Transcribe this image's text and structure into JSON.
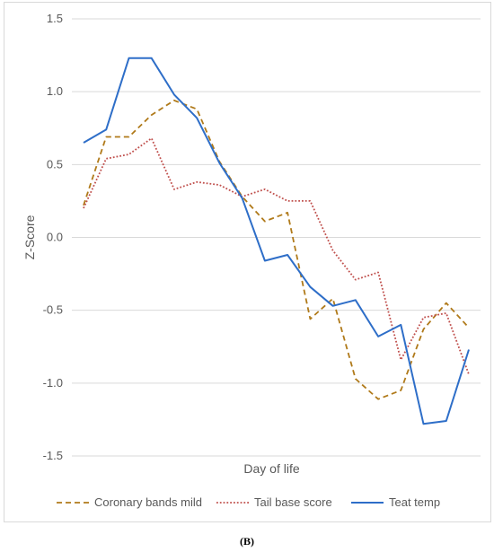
{
  "caption": "(B)",
  "chart_data": {
    "type": "line",
    "xlabel": "Day of life",
    "ylabel": "Z-Score",
    "ylim": [
      -1.5,
      1.5
    ],
    "yticks": [
      "-1.5",
      "-1.0",
      "-0.5",
      "0.0",
      "0.5",
      "1.0",
      "1.5"
    ],
    "grid": "horizontal",
    "legend": "bottom",
    "series": [
      {
        "name": "Coronary bands mild",
        "color": "#b07a1a",
        "dash": "dashed",
        "values": [
          0.22,
          0.69,
          0.69,
          0.84,
          0.94,
          0.88,
          0.52,
          0.28,
          0.11,
          0.17,
          -0.56,
          -0.42,
          -0.97,
          -1.11,
          -1.05,
          -0.63,
          -0.45,
          -0.62
        ]
      },
      {
        "name": "Tail base score",
        "color": "#c0504d",
        "dash": "dotted",
        "values": [
          0.2,
          0.54,
          0.57,
          0.68,
          0.33,
          0.38,
          0.36,
          0.28,
          0.33,
          0.25,
          0.25,
          -0.09,
          -0.29,
          -0.24,
          -0.84,
          -0.55,
          -0.52,
          -0.94
        ]
      },
      {
        "name": "Teat temp",
        "color": "#2e6ec8",
        "dash": "solid",
        "values": [
          0.65,
          0.74,
          1.23,
          1.23,
          0.98,
          0.82,
          0.51,
          0.27,
          -0.16,
          -0.12,
          -0.34,
          -0.47,
          -0.43,
          -0.68,
          -0.6,
          -1.28,
          -1.26,
          -0.77
        ]
      }
    ]
  }
}
